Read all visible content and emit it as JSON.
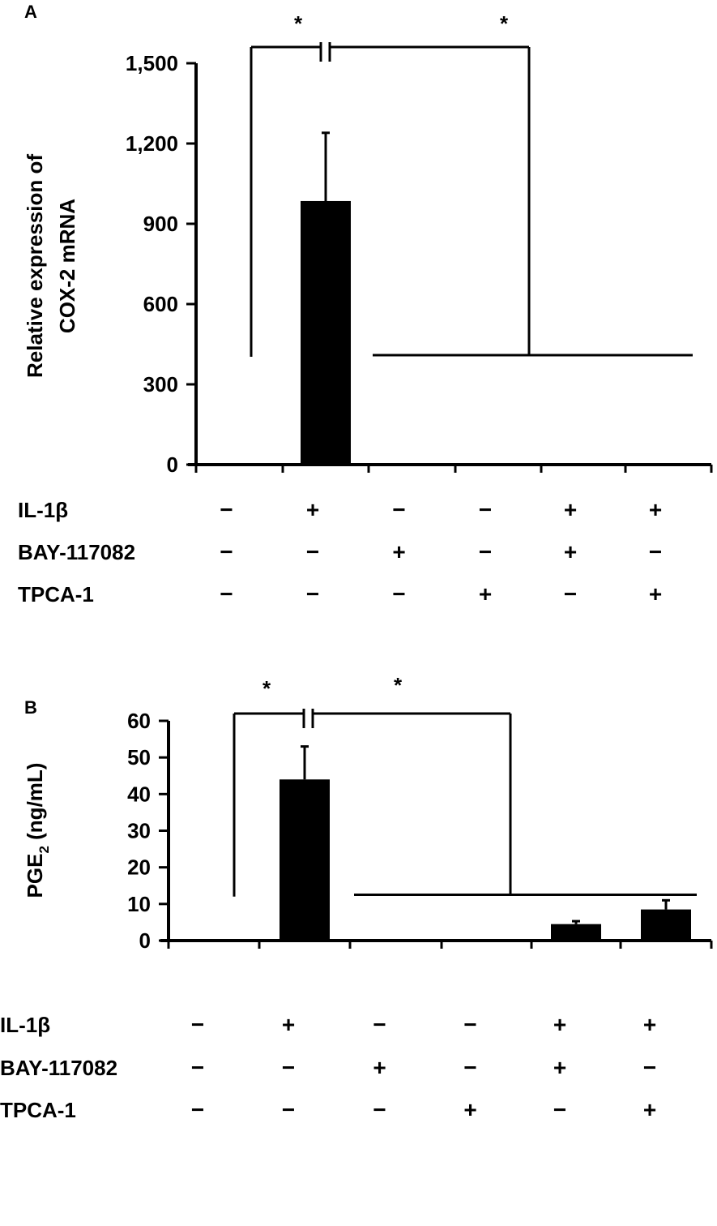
{
  "chart_data": [
    {
      "panel": "A",
      "type": "bar",
      "ylabel_line1": "Relative expression of",
      "ylabel_line2": "COX-2 mRNA",
      "ylim": [
        0,
        1500
      ],
      "yticks": [
        0,
        300,
        600,
        900,
        1200,
        1500
      ],
      "ytick_labels": [
        "0",
        "300",
        "600",
        "900",
        "1,200",
        "1,500"
      ],
      "values": [
        2,
        985,
        0,
        0,
        0,
        2
      ],
      "errors": [
        0,
        255,
        0,
        0,
        0,
        0
      ],
      "significance": [
        "*",
        "*"
      ],
      "conditions": [
        {
          "label": "IL-1β",
          "signs": [
            "−",
            "+",
            "−",
            "−",
            "+",
            "+"
          ]
        },
        {
          "label": "BAY-117082",
          "signs": [
            "−",
            "−",
            "+",
            "−",
            "+",
            "−"
          ]
        },
        {
          "label": "TPCA-1",
          "signs": [
            "−",
            "−",
            "−",
            "+",
            "−",
            "+"
          ]
        }
      ]
    },
    {
      "panel": "B",
      "type": "bar",
      "ylabel_main": "PGE",
      "ylabel_sub": "2",
      "ylabel_unit": " (ng/mL)",
      "ylim": [
        0,
        60
      ],
      "yticks": [
        0,
        10,
        20,
        30,
        40,
        50,
        60
      ],
      "ytick_labels": [
        "0",
        "10",
        "20",
        "30",
        "40",
        "50",
        "60"
      ],
      "values": [
        0.1,
        44,
        0.1,
        0.1,
        4.5,
        8.5
      ],
      "errors": [
        0,
        9,
        0,
        0,
        0.8,
        2.5
      ],
      "significance": [
        "*",
        "*"
      ],
      "conditions": [
        {
          "label": "IL-1β",
          "signs": [
            "−",
            "+",
            "−",
            "−",
            "+",
            "+"
          ]
        },
        {
          "label": "BAY-117082",
          "signs": [
            "−",
            "−",
            "+",
            "−",
            "+",
            "−"
          ]
        },
        {
          "label": "TPCA-1",
          "signs": [
            "−",
            "−",
            "−",
            "+",
            "−",
            "+"
          ]
        }
      ]
    }
  ]
}
